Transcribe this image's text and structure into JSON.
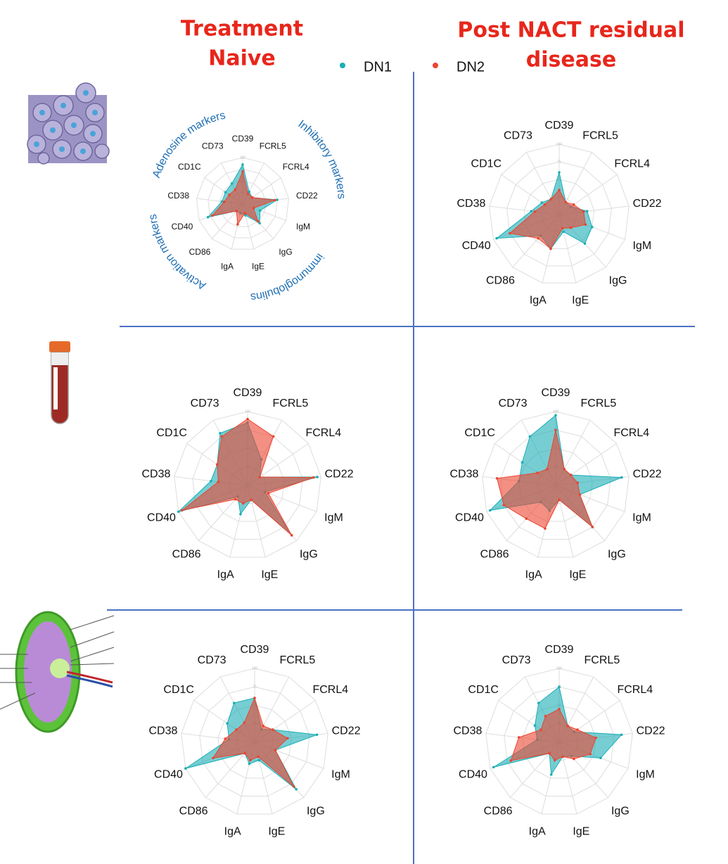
{
  "header": {
    "columns": [
      [
        "Treatment",
        "Naive"
      ],
      [
        "Post NACT residual",
        "disease"
      ]
    ]
  },
  "chart_data": [
    {
      "type": "radar",
      "categories": [
        "CD39",
        "FCRL5",
        "FCRL4",
        "CD22",
        "IgM",
        "IgG",
        "IgE",
        "IgA",
        "CD86",
        "CD40",
        "CD38",
        "CD1C",
        "CD73"
      ],
      "rlim": [
        0,
        100
      ],
      "rticks": [
        25,
        50,
        75,
        100
      ],
      "annotations": [
        "Adenosine markers",
        "Inhibitory markers",
        "immunoglobulins",
        "Activation markers"
      ],
      "series": [
        {
          "name": "DN1",
          "color": "#1aaeb6",
          "values": [
            85,
            30,
            25,
            75,
            40,
            55,
            25,
            20,
            20,
            80,
            45,
            45,
            50
          ]
        },
        {
          "name": "DN2",
          "color": "#ec4430",
          "values": [
            70,
            25,
            25,
            70,
            25,
            50,
            20,
            45,
            20,
            70,
            40,
            35,
            35
          ]
        }
      ]
    },
    {
      "type": "radar",
      "categories": [
        "CD39",
        "FCRL5",
        "FCRL4",
        "CD22",
        "IgM",
        "IgG",
        "IgE",
        "IgA",
        "CD86",
        "CD40",
        "CD38",
        "CD1C",
        "CD73"
      ],
      "rlim": [
        0,
        100
      ],
      "rticks": [
        25,
        50,
        75,
        100
      ],
      "series": [
        {
          "name": "DN1",
          "color": "#1aaeb6",
          "values": [
            60,
            20,
            20,
            40,
            50,
            55,
            25,
            50,
            40,
            95,
            40,
            30,
            25
          ]
        },
        {
          "name": "DN2",
          "color": "#ec4430",
          "values": [
            35,
            20,
            25,
            35,
            40,
            25,
            20,
            50,
            45,
            75,
            35,
            25,
            25
          ]
        }
      ]
    },
    {
      "type": "radar",
      "categories": [
        "CD39",
        "FCRL5",
        "FCRL4",
        "CD22",
        "IgM",
        "IgG",
        "IgE",
        "IgA",
        "CD86",
        "CD40",
        "CD38",
        "CD1C",
        "CD73"
      ],
      "rlim": [
        0,
        100
      ],
      "rticks": [
        25,
        50,
        75,
        100
      ],
      "series": [
        {
          "name": "DN1",
          "color": "#1aaeb6",
          "values": [
            85,
            40,
            20,
            95,
            25,
            90,
            20,
            40,
            20,
            100,
            50,
            50,
            80
          ]
        },
        {
          "name": "DN2",
          "color": "#ec4430",
          "values": [
            90,
            75,
            20,
            90,
            30,
            90,
            20,
            25,
            25,
            95,
            40,
            50,
            75
          ]
        }
      ]
    },
    {
      "type": "radar",
      "categories": [
        "CD39",
        "FCRL5",
        "FCRL4",
        "CD22",
        "IgM",
        "IgG",
        "IgE",
        "IgA",
        "CD86",
        "CD40",
        "CD38",
        "CD1C",
        "CD73"
      ],
      "rlim": [
        0,
        100
      ],
      "rticks": [
        25,
        50,
        75,
        100
      ],
      "series": [
        {
          "name": "DN1",
          "color": "#1aaeb6",
          "values": [
            95,
            25,
            25,
            90,
            35,
            75,
            20,
            35,
            30,
            95,
            50,
            55,
            75
          ]
        },
        {
          "name": "DN2",
          "color": "#ec4430",
          "values": [
            75,
            25,
            25,
            30,
            35,
            75,
            20,
            60,
            60,
            75,
            80,
            30,
            25
          ]
        }
      ]
    },
    {
      "type": "radar",
      "categories": [
        "CD39",
        "FCRL5",
        "FCRL4",
        "CD22",
        "IgM",
        "IgG",
        "IgE",
        "IgA",
        "CD86",
        "CD40",
        "CD38",
        "CD1C",
        "CD73"
      ],
      "rlim": [
        0,
        100
      ],
      "rticks": [
        25,
        50,
        75,
        100
      ],
      "series": [
        {
          "name": "DN1",
          "color": "#1aaeb6",
          "values": [
            60,
            20,
            30,
            85,
            30,
            85,
            25,
            30,
            20,
            100,
            35,
            45,
            60
          ]
        },
        {
          "name": "DN2",
          "color": "#ec4430",
          "values": [
            60,
            25,
            30,
            45,
            30,
            80,
            20,
            25,
            20,
            60,
            40,
            30,
            30
          ]
        }
      ]
    },
    {
      "type": "radar",
      "categories": [
        "CD39",
        "FCRL5",
        "FCRL4",
        "CD22",
        "IgM",
        "IgG",
        "IgE",
        "IgA",
        "CD86",
        "CD40",
        "CD38",
        "CD1C",
        "CD73"
      ],
      "rlim": [
        0,
        100
      ],
      "rticks": [
        25,
        50,
        75,
        100
      ],
      "series": [
        {
          "name": "DN1",
          "color": "#1aaeb6",
          "values": [
            75,
            25,
            25,
            85,
            60,
            25,
            20,
            45,
            20,
            95,
            30,
            40,
            60
          ]
        },
        {
          "name": "DN2",
          "color": "#ec4430",
          "values": [
            45,
            25,
            30,
            50,
            45,
            30,
            20,
            25,
            20,
            70,
            55,
            30,
            40
          ]
        }
      ]
    }
  ]
}
